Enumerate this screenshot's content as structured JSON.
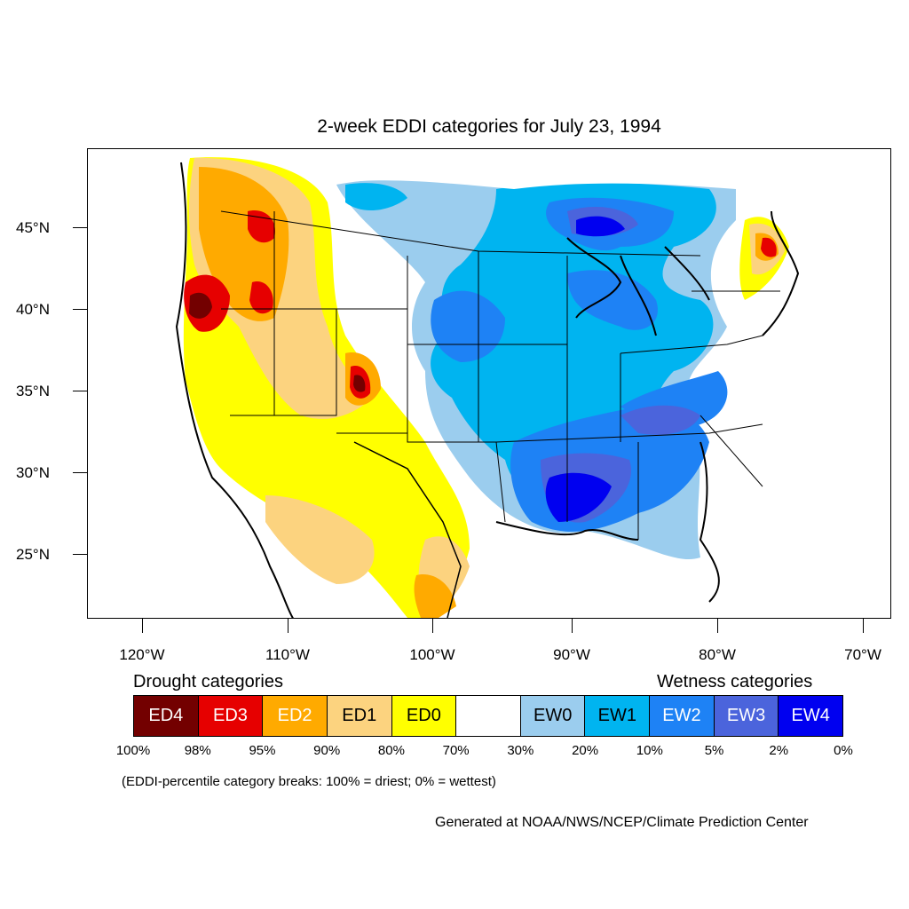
{
  "title": "2-week EDDI categories for July 23, 1994",
  "lat_labels": [
    "45°N",
    "40°N",
    "35°N",
    "30°N",
    "25°N"
  ],
  "lon_labels": [
    "120°W",
    "110°W",
    "100°W",
    "90°W",
    "80°W",
    "70°W"
  ],
  "legend": {
    "drought_heading": "Drought categories",
    "wetness_heading": "Wetness categories",
    "categories": [
      {
        "label": "ED4",
        "color": "#730000",
        "text_color": "#ffffff"
      },
      {
        "label": "ED3",
        "color": "#e60000",
        "text_color": "#ffffff"
      },
      {
        "label": "ED2",
        "color": "#ffaa00",
        "text_color": "#ffffff"
      },
      {
        "label": "ED1",
        "color": "#fcd37f",
        "text_color": "#000000"
      },
      {
        "label": "ED0",
        "color": "#ffff00",
        "text_color": "#000000"
      },
      {
        "label": "",
        "color": "#ffffff",
        "text_color": "#000000"
      },
      {
        "label": "EW0",
        "color": "#9bcdee",
        "text_color": "#000000"
      },
      {
        "label": "EW1",
        "color": "#00b4f0",
        "text_color": "#000000"
      },
      {
        "label": "EW2",
        "color": "#1e82f5",
        "text_color": "#ffffff"
      },
      {
        "label": "EW3",
        "color": "#4b64dc",
        "text_color": "#ffffff"
      },
      {
        "label": "EW4",
        "color": "#0000f0",
        "text_color": "#ffffff"
      }
    ],
    "percent_breaks": [
      "100%",
      "98%",
      "95%",
      "90%",
      "80%",
      "70%",
      "30%",
      "20%",
      "10%",
      "5%",
      "2%",
      "0%"
    ]
  },
  "note": "(EDDI-percentile category breaks: 100% = driest; 0% = wettest)",
  "credit": "Generated at NOAA/NWS/NCEP/Climate Prediction Center"
}
